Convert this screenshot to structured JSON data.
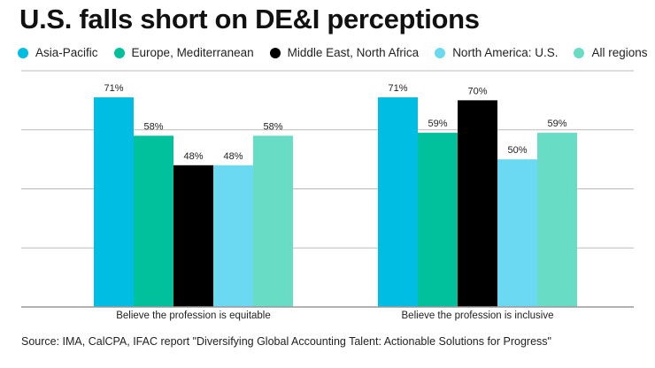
{
  "chart_data": {
    "type": "bar",
    "title": "U.S. falls short on DE&I perceptions",
    "categories": [
      "Believe the profession is equitable",
      "Believe the profession is inclusive"
    ],
    "series": [
      {
        "name": "Asia-Pacific",
        "color": "#00bde3",
        "values": [
          71,
          71
        ]
      },
      {
        "name": "Europe, Mediterranean",
        "color": "#00c19b",
        "values": [
          58,
          59
        ]
      },
      {
        "name": "Middle East, North Africa",
        "color": "#000000",
        "values": [
          48,
          70
        ]
      },
      {
        "name": "North America: U.S.",
        "color": "#6cd9f2",
        "values": [
          48,
          50
        ]
      },
      {
        "name": "All regions",
        "color": "#69dcc6",
        "values": [
          58,
          59
        ]
      }
    ],
    "value_suffix": "%",
    "ylim": [
      0,
      80
    ],
    "gridlines": [
      20,
      40,
      60,
      80
    ],
    "grid": true,
    "legend": "top",
    "xlabel": "",
    "ylabel": "",
    "source": "Source: IMA, CalCPA, IFAC report \"Diversifying Global Accounting Talent: Actionable Solutions for Progress\""
  }
}
